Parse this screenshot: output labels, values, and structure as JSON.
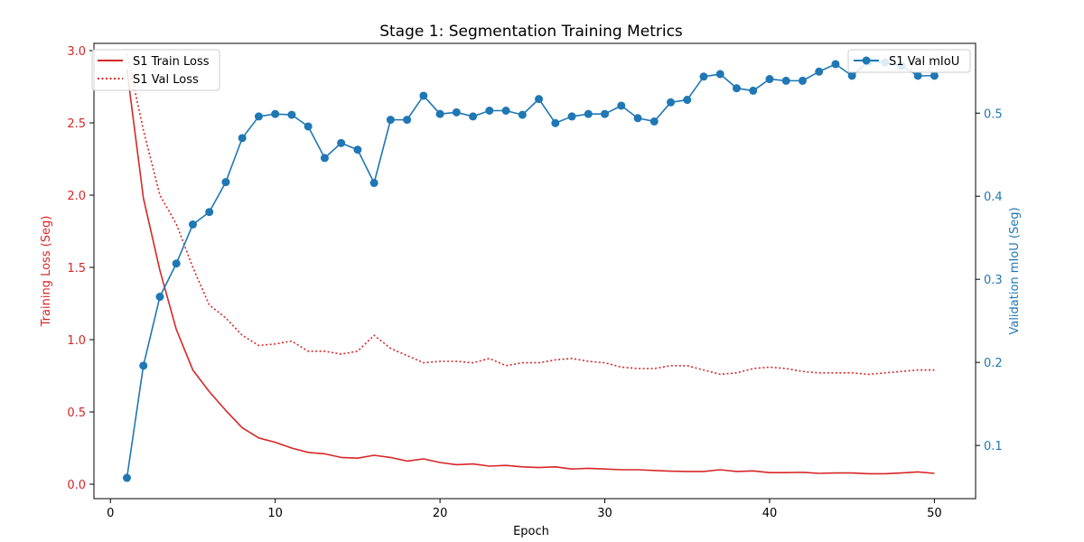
{
  "chart_data": {
    "type": "line",
    "title": "Stage 1: Segmentation Training Metrics",
    "xlabel": "Epoch",
    "ylabel_left": "Training Loss (Seg)",
    "ylabel_right": "Validation mIoU (Seg)",
    "xlim": [
      -1,
      52.5
    ],
    "ylim_left": [
      -0.1,
      3.05
    ],
    "ylim_right": [
      0.036,
      0.584
    ],
    "x_ticks": [
      0,
      10,
      20,
      30,
      40,
      50
    ],
    "x_tick_labels": [
      "0",
      "10",
      "20",
      "30",
      "40",
      "50"
    ],
    "y_left_ticks": [
      0.0,
      0.5,
      1.0,
      1.5,
      2.0,
      2.5,
      3.0
    ],
    "y_left_tick_labels": [
      "0.0",
      "0.5",
      "1.0",
      "1.5",
      "2.0",
      "2.5",
      "3.0"
    ],
    "y_right_ticks": [
      0.1,
      0.2,
      0.3,
      0.4,
      0.5
    ],
    "y_right_tick_labels": [
      "0.1",
      "0.2",
      "0.3",
      "0.4",
      "0.5"
    ],
    "grid": false,
    "left_color": "#d62728",
    "right_color": "#1f77b4",
    "x": [
      1,
      2,
      3,
      4,
      5,
      6,
      7,
      8,
      9,
      10,
      11,
      12,
      13,
      14,
      15,
      16,
      17,
      18,
      19,
      20,
      21,
      22,
      23,
      24,
      25,
      26,
      27,
      28,
      29,
      30,
      31,
      32,
      33,
      34,
      35,
      36,
      37,
      38,
      39,
      40,
      41,
      42,
      43,
      44,
      45,
      46,
      47,
      48,
      49,
      50
    ],
    "series": [
      {
        "name": "S1 Train Loss",
        "axis": "left",
        "color": "#d62728",
        "style": "solid",
        "marker": "none",
        "values": [
          2.87,
          1.98,
          1.48,
          1.07,
          0.79,
          0.64,
          0.51,
          0.39,
          0.32,
          0.29,
          0.25,
          0.22,
          0.21,
          0.185,
          0.18,
          0.2,
          0.185,
          0.16,
          0.175,
          0.15,
          0.135,
          0.14,
          0.125,
          0.13,
          0.12,
          0.115,
          0.12,
          0.105,
          0.11,
          0.105,
          0.1,
          0.1,
          0.095,
          0.09,
          0.088,
          0.088,
          0.1,
          0.088,
          0.092,
          0.08,
          0.08,
          0.082,
          0.075,
          0.078,
          0.078,
          0.072,
          0.072,
          0.078,
          0.085,
          0.075
        ]
      },
      {
        "name": "S1 Val Loss",
        "axis": "left",
        "color": "#d62728",
        "style": "dotted",
        "marker": "none",
        "values": [
          2.98,
          2.45,
          2.0,
          1.8,
          1.5,
          1.24,
          1.15,
          1.03,
          0.96,
          0.97,
          0.99,
          0.92,
          0.92,
          0.9,
          0.92,
          1.03,
          0.94,
          0.89,
          0.84,
          0.85,
          0.85,
          0.84,
          0.87,
          0.82,
          0.84,
          0.84,
          0.86,
          0.87,
          0.85,
          0.84,
          0.81,
          0.8,
          0.8,
          0.82,
          0.82,
          0.79,
          0.76,
          0.77,
          0.8,
          0.81,
          0.8,
          0.78,
          0.77,
          0.77,
          0.77,
          0.76,
          0.77,
          0.78,
          0.79,
          0.79
        ]
      },
      {
        "name": "S1 Val mIoU",
        "axis": "right",
        "color": "#1f77b4",
        "style": "solid",
        "marker": "circle",
        "values": [
          0.061,
          0.196,
          0.279,
          0.319,
          0.366,
          0.381,
          0.417,
          0.47,
          0.496,
          0.499,
          0.498,
          0.484,
          0.446,
          0.464,
          0.456,
          0.416,
          0.492,
          0.492,
          0.521,
          0.499,
          0.501,
          0.496,
          0.503,
          0.503,
          0.498,
          0.517,
          0.488,
          0.496,
          0.499,
          0.499,
          0.509,
          0.494,
          0.49,
          0.513,
          0.516,
          0.544,
          0.547,
          0.53,
          0.527,
          0.541,
          0.539,
          0.539,
          0.55,
          0.559,
          0.545,
          0.562,
          0.561,
          0.557,
          0.545,
          0.545
        ]
      }
    ],
    "legend_left": {
      "placement": "upper-left",
      "entries": [
        "S1 Train Loss",
        "S1 Val Loss"
      ]
    },
    "legend_right": {
      "placement": "upper-right",
      "entries": [
        "S1 Val mIoU"
      ]
    }
  }
}
